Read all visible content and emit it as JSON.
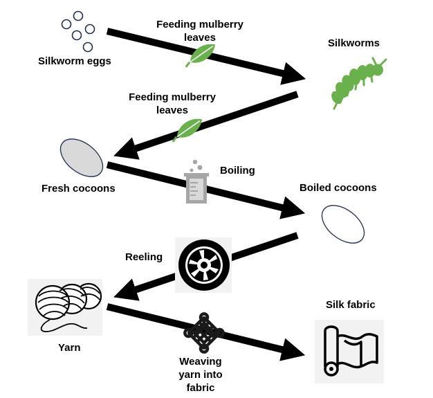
{
  "colors": {
    "arrow": "#000000",
    "leaf": "#6ab04c",
    "caterpillar": "#6ab04c",
    "egg_stroke": "#1f2d50",
    "cocoon_fill": "#d9d9d9",
    "cocoon_stroke": "#1f2d50",
    "beaker": "#a6a6a6",
    "icon_dark": "#000000",
    "icon_bg": "#f2f2f2"
  },
  "stages": {
    "silkworm_eggs": {
      "label": "Silkworm eggs",
      "icon": "eggs-icon"
    },
    "silkworms": {
      "label": "Silkworms",
      "icon": "caterpillar-icon"
    },
    "fresh_cocoons": {
      "label": "Fresh cocoons",
      "icon": "fresh-cocoon-icon"
    },
    "boiled_cocoons": {
      "label": "Boiled cocoons",
      "icon": "boiled-cocoon-icon"
    },
    "yarn": {
      "label": "Yarn",
      "icon": "yarn-balls-icon"
    },
    "silk_fabric": {
      "label": "Silk fabric",
      "icon": "fabric-roll-icon"
    }
  },
  "steps": {
    "feeding_1": {
      "lines": [
        "Feeding mulberry",
        "leaves"
      ],
      "icon": "leaf-icon"
    },
    "feeding_2": {
      "lines": [
        "Feeding mulberry",
        "leaves"
      ],
      "icon": "leaf-icon"
    },
    "boiling": {
      "label": "Boiling",
      "icon": "beaker-icon"
    },
    "reeling": {
      "label": "Reeling",
      "icon": "reel-wheel-icon"
    },
    "weaving": {
      "lines": [
        "Weaving",
        "yarn into",
        "fabric"
      ],
      "icon": "knot-icon"
    }
  }
}
